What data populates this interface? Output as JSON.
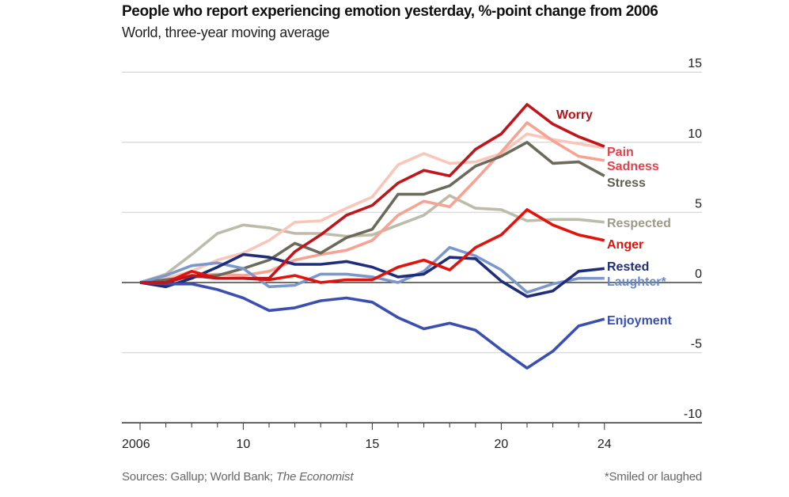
{
  "header": {
    "title": "People who report experiencing emotion yesterday, %-point change from 2006",
    "subtitle": "World, three-year moving average"
  },
  "footer": {
    "source_prefix": "Sources: Gallup; World Bank; ",
    "source_italic": "The Economist",
    "note": "*Smiled or laughed"
  },
  "chart_data": {
    "type": "line",
    "title": "People who report experiencing emotion yesterday, %-point change from 2006",
    "subtitle": "World, three-year moving average",
    "xlabel": "",
    "ylabel": "",
    "x": [
      2006,
      2007,
      2008,
      2009,
      2010,
      2011,
      2012,
      2013,
      2014,
      2015,
      2016,
      2017,
      2018,
      2019,
      2020,
      2021,
      2022,
      2023,
      2024
    ],
    "xlim": [
      2006,
      2030
    ],
    "ylim": [
      -10,
      15
    ],
    "yticks": [
      15,
      10,
      5,
      0,
      -5,
      -10
    ],
    "ytick_labels": [
      "15",
      "10",
      "5",
      "0",
      "-5",
      "-10"
    ],
    "xticks": [
      2006,
      2010,
      2015,
      2020,
      2024
    ],
    "xtick_labels": [
      "2006",
      "10",
      "15",
      "20",
      "24"
    ],
    "grid": true,
    "legend": "direct labels at line ends (right)",
    "series": [
      {
        "name": "Respected",
        "color": "#bdbcab",
        "label_color": "#9c9b88",
        "values": [
          0,
          0.6,
          2.0,
          3.5,
          4.1,
          3.9,
          3.5,
          3.5,
          3.3,
          3.4,
          4.1,
          4.8,
          6.2,
          5.3,
          5.2,
          4.4,
          4.5,
          4.5,
          4.3
        ]
      },
      {
        "name": "Pain",
        "color": "#fbc6ba",
        "label_color": "#e8404a",
        "values": [
          0,
          0.3,
          0.8,
          1.6,
          2.1,
          3.0,
          4.3,
          4.4,
          5.3,
          6.1,
          8.4,
          9.2,
          8.5,
          8.6,
          9.2,
          10.6,
          10.2,
          9.9,
          9.6
        ]
      },
      {
        "name": "Sadness",
        "color": "#f6a393",
        "label_color": "#e8404a",
        "values": [
          0,
          0.2,
          0.5,
          0.6,
          0.5,
          0.8,
          1.6,
          2.0,
          2.3,
          3.0,
          4.8,
          5.8,
          5.4,
          7.3,
          9.3,
          11.4,
          10.1,
          9.0,
          8.7
        ]
      },
      {
        "name": "Stress",
        "color": "#6b6a5b",
        "label_color": "#5f5e50",
        "values": [
          0,
          0.2,
          0.4,
          0.5,
          1.0,
          1.6,
          2.8,
          2.1,
          3.2,
          3.8,
          6.3,
          6.3,
          6.9,
          8.3,
          9.0,
          10.0,
          8.5,
          8.6,
          7.6
        ]
      },
      {
        "name": "Laughter*",
        "color": "#7b97cc",
        "label_color": "#6a88c4",
        "values": [
          0,
          0.5,
          1.2,
          1.4,
          1.0,
          -0.3,
          -0.2,
          0.6,
          0.6,
          0.4,
          0.0,
          0.8,
          2.5,
          1.9,
          0.9,
          -0.7,
          -0.1,
          0.3,
          0.3
        ]
      },
      {
        "name": "Rested",
        "color": "#1f2d7b",
        "label_color": "#1f2d7b",
        "values": [
          0,
          -0.3,
          0.3,
          1.1,
          2.0,
          1.8,
          1.3,
          1.3,
          1.5,
          1.1,
          0.4,
          0.6,
          1.8,
          1.7,
          0.1,
          -1.0,
          -0.6,
          0.8,
          1.0
        ]
      },
      {
        "name": "Enjoyment",
        "color": "#3a4fb0",
        "label_color": "#3a4fb0",
        "values": [
          0,
          -0.1,
          -0.1,
          -0.5,
          -1.1,
          -2.0,
          -1.8,
          -1.3,
          -1.1,
          -1.4,
          -2.5,
          -3.3,
          -2.9,
          -3.4,
          -4.8,
          -6.1,
          -4.9,
          -3.1,
          -2.6
        ]
      },
      {
        "name": "Anger",
        "color": "#e3120b",
        "label_color": "#e3120b",
        "values": [
          0,
          0,
          0.8,
          0.3,
          0.3,
          0.2,
          0.5,
          0.0,
          0.2,
          0.2,
          1.1,
          1.6,
          0.9,
          2.5,
          3.4,
          5.2,
          4.1,
          3.4,
          3.0
        ]
      },
      {
        "name": "Worry",
        "color": "#c0151b",
        "label_color": "#b5141a",
        "values": [
          0,
          0,
          0.5,
          0.3,
          0.3,
          0.3,
          2.2,
          3.4,
          4.8,
          5.5,
          7.1,
          8.0,
          7.6,
          9.5,
          10.6,
          12.7,
          11.3,
          10.4,
          9.7
        ]
      }
    ],
    "annotations": [
      {
        "series": "Worry",
        "text": "Worry",
        "position": "above line near 2022"
      },
      {
        "series": "Pain",
        "text": "Pain"
      },
      {
        "series": "Sadness",
        "text": "Sadness"
      },
      {
        "series": "Stress",
        "text": "Stress"
      },
      {
        "series": "Respected",
        "text": "Respected"
      },
      {
        "series": "Anger",
        "text": "Anger"
      },
      {
        "series": "Rested",
        "text": "Rested"
      },
      {
        "series": "Laughter*",
        "text": "Laughter*"
      },
      {
        "series": "Enjoyment",
        "text": "Enjoyment"
      }
    ]
  }
}
